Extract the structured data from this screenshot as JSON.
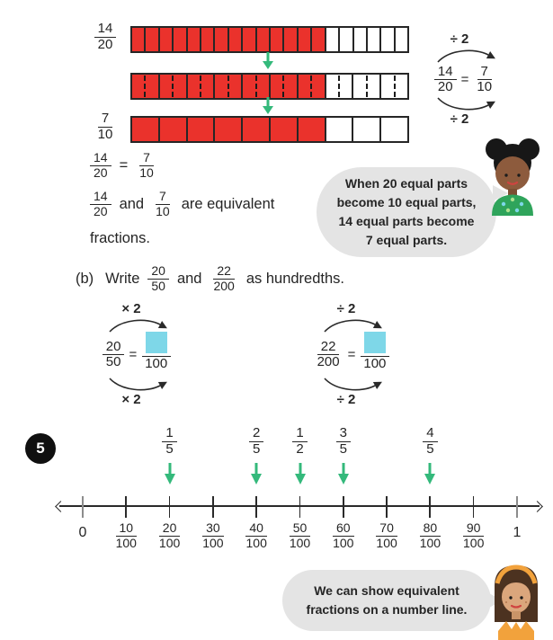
{
  "colors": {
    "red": "#ea322c",
    "green": "#34b97b",
    "answer_box_blue": "#7ed7e8",
    "bubble_gray": "#e4e4e4",
    "ink": "#252525",
    "end_tick_gray": "#8c8c8c"
  },
  "icons": {
    "green_down_arrow": "↓",
    "curved_arrow": "⌒→",
    "number_line_arrows": "↔"
  },
  "bar_model": {
    "bars": [
      {
        "label": {
          "num": "14",
          "den": "20"
        },
        "cells": 20,
        "filled": 14,
        "dashed": false
      },
      {
        "label": null,
        "cells": 10,
        "filled": 7,
        "dashed": true
      },
      {
        "label": {
          "num": "7",
          "den": "10"
        },
        "cells": 10,
        "filled": 7,
        "dashed": false
      }
    ]
  },
  "side_equation": {
    "top_op": "÷ 2",
    "bottom_op": "÷ 2",
    "left": {
      "num": "14",
      "den": "20"
    },
    "eq": "=",
    "right": {
      "num": "7",
      "den": "10"
    }
  },
  "statement": {
    "line1": {
      "l_num": "14",
      "l_den": "20",
      "eq": "=",
      "r_num": "7",
      "r_den": "10"
    },
    "line2": {
      "l_num": "14",
      "l_den": "20",
      "conj": "and",
      "r_num": "7",
      "r_den": "10",
      "tail": "are equivalent"
    },
    "line3": "fractions."
  },
  "bubble1": {
    "lines": [
      "When 20 equal parts",
      "become 10 equal parts,",
      "14 equal parts become",
      "7 equal parts."
    ]
  },
  "part_b": {
    "label": "(b)",
    "verb": "Write",
    "f1_num": "20",
    "f1_den": "50",
    "conj": "and",
    "f2_num": "22",
    "f2_den": "200",
    "tail": "as hundredths.",
    "eq_left": {
      "top_op": "× 2",
      "bottom_op": "× 2",
      "num": "20",
      "den": "50",
      "eq": "=",
      "result_den": "100"
    },
    "eq_right": {
      "top_op": "÷ 2",
      "bottom_op": "÷ 2",
      "num": "22",
      "den": "200",
      "eq": "=",
      "result_den": "100"
    }
  },
  "question5": {
    "number": "5",
    "number_line": {
      "start_label": "0",
      "end_label": "1",
      "tick_fractions": [
        {
          "num": "10",
          "den": "100"
        },
        {
          "num": "20",
          "den": "100"
        },
        {
          "num": "30",
          "den": "100"
        },
        {
          "num": "40",
          "den": "100"
        },
        {
          "num": "50",
          "den": "100"
        },
        {
          "num": "60",
          "den": "100"
        },
        {
          "num": "70",
          "den": "100"
        },
        {
          "num": "80",
          "den": "100"
        },
        {
          "num": "90",
          "den": "100"
        }
      ],
      "callouts": [
        {
          "num": "1",
          "den": "5",
          "at": 20
        },
        {
          "num": "2",
          "den": "5",
          "at": 40
        },
        {
          "num": "1",
          "den": "2",
          "at": 50
        },
        {
          "num": "3",
          "den": "5",
          "at": 60
        },
        {
          "num": "4",
          "den": "5",
          "at": 80
        }
      ]
    }
  },
  "bubble2": {
    "lines": [
      "We can show equivalent",
      "fractions on a number line."
    ]
  }
}
